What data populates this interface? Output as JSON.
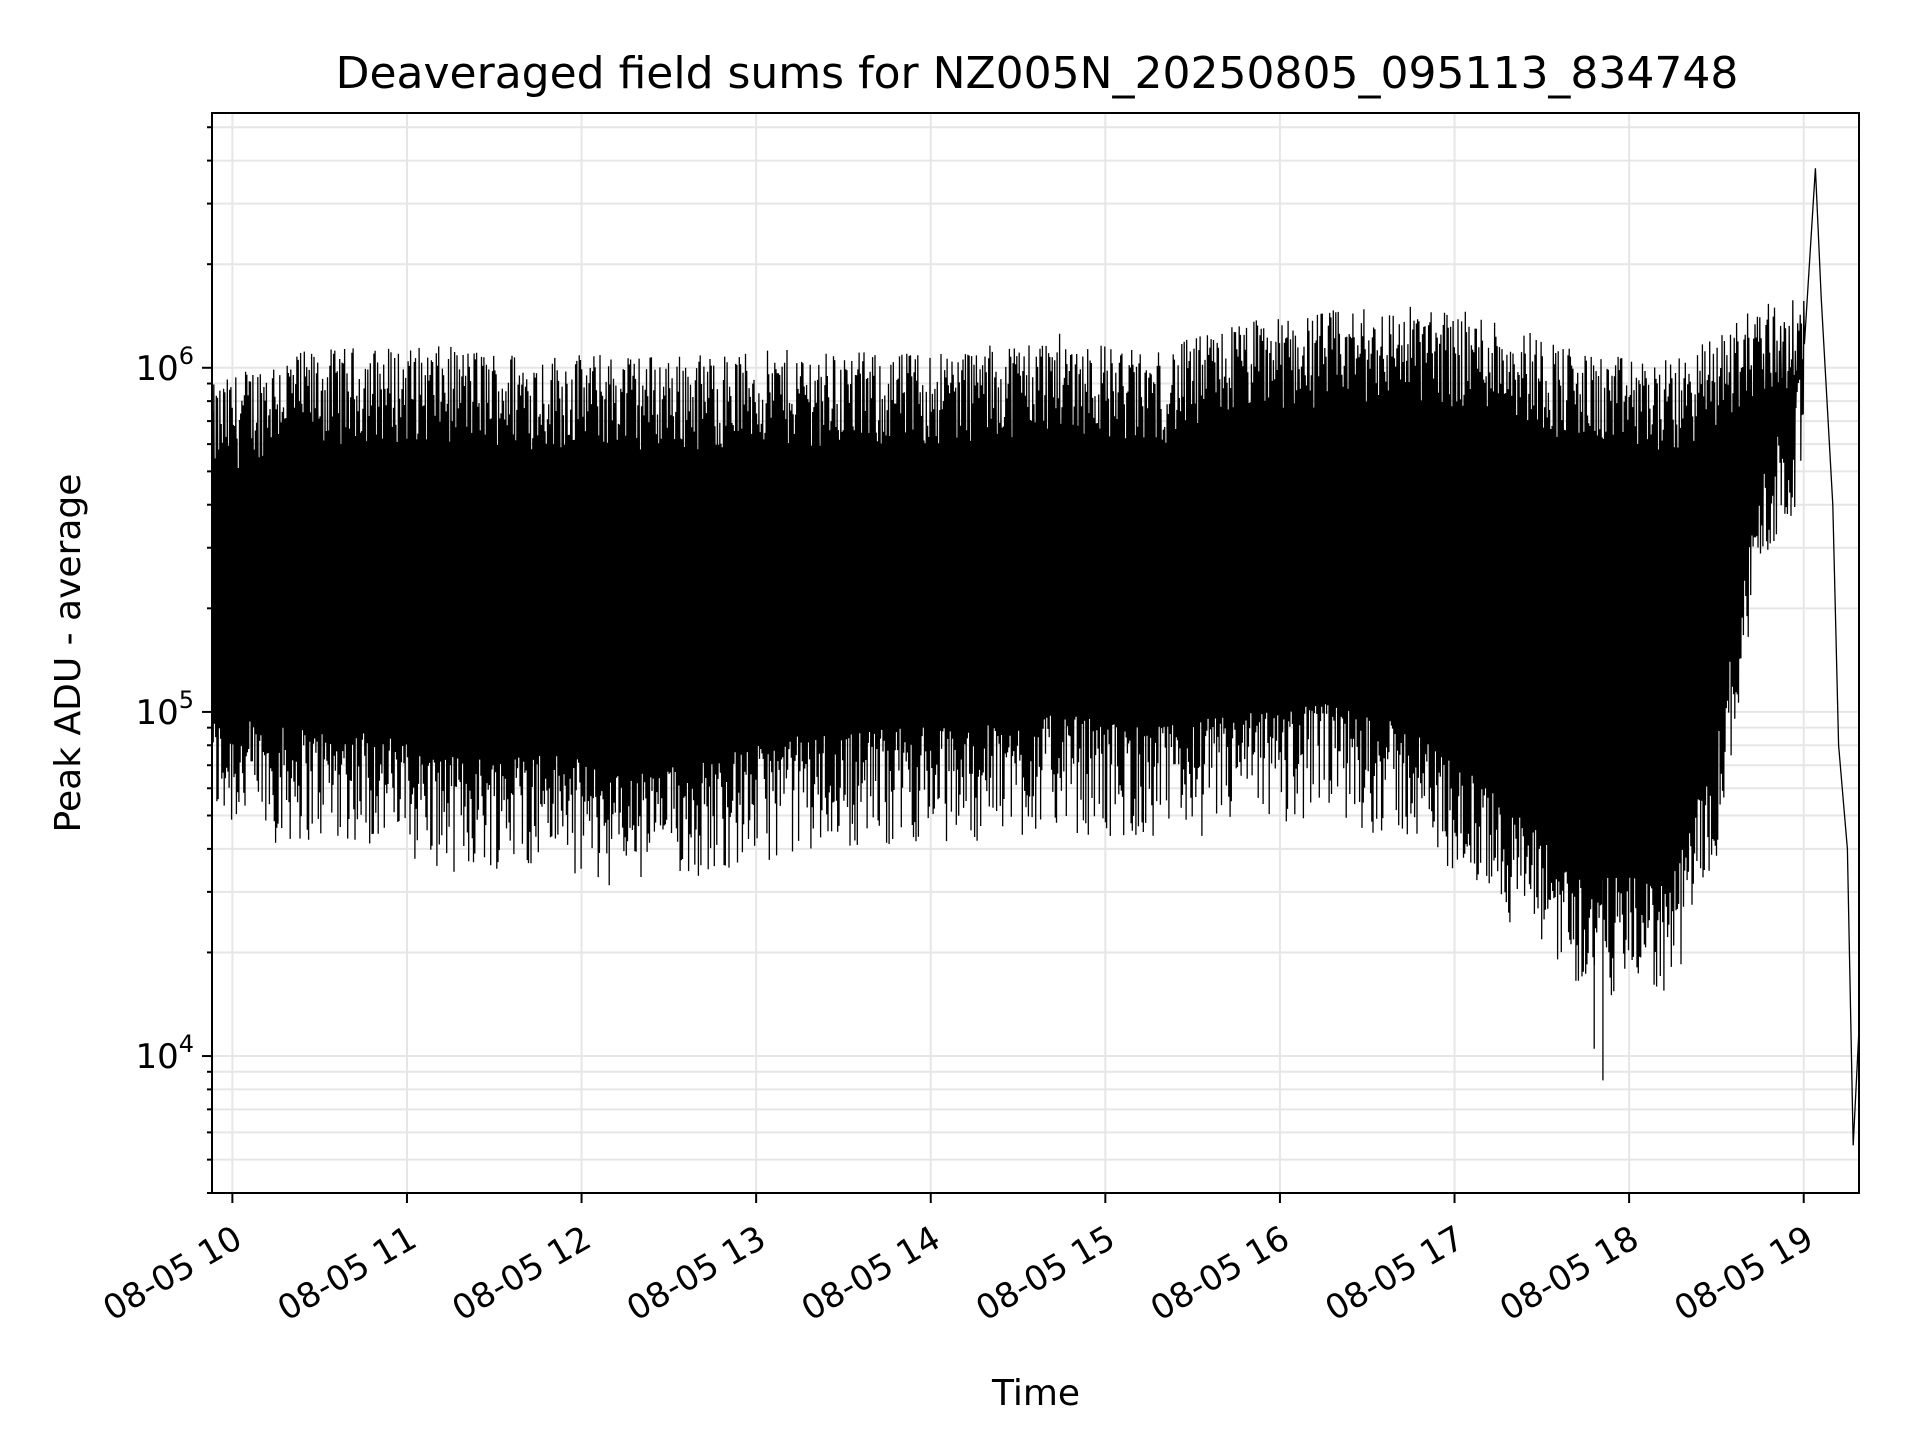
{
  "chart_data": {
    "type": "line",
    "title": "Deaveraged field sums for NZ005N_20250805_095113_834748",
    "xlabel": "Time",
    "ylabel": "Peak ADU - average",
    "yscale": "log",
    "grid": true,
    "xlim": [
      "2025-08-05 09:53",
      "2025-08-05 19:19"
    ],
    "ylim": [
      4000,
      5500000
    ],
    "x_ticks": [
      {
        "value": "2025-08-05 10:00",
        "label": "08-05 10"
      },
      {
        "value": "2025-08-05 11:00",
        "label": "08-05 11"
      },
      {
        "value": "2025-08-05 12:00",
        "label": "08-05 12"
      },
      {
        "value": "2025-08-05 13:00",
        "label": "08-05 13"
      },
      {
        "value": "2025-08-05 14:00",
        "label": "08-05 14"
      },
      {
        "value": "2025-08-05 15:00",
        "label": "08-05 15"
      },
      {
        "value": "2025-08-05 16:00",
        "label": "08-05 16"
      },
      {
        "value": "2025-08-05 17:00",
        "label": "08-05 17"
      },
      {
        "value": "2025-08-05 18:00",
        "label": "08-05 18"
      },
      {
        "value": "2025-08-05 19:00",
        "label": "08-05 19"
      }
    ],
    "y_ticks": [
      {
        "value": 10000,
        "base": "10",
        "exp": "4"
      },
      {
        "value": 100000,
        "base": "10",
        "exp": "5"
      },
      {
        "value": 1000000,
        "base": "10",
        "exp": "6"
      }
    ],
    "series": [
      {
        "color": "#000000",
        "envelope": [
          {
            "x": "2025-08-05 09:53",
            "low": 60000,
            "high": 850000
          },
          {
            "x": "2025-08-05 10:15",
            "low": 55000,
            "high": 1050000
          },
          {
            "x": "2025-08-05 10:45",
            "low": 55000,
            "high": 1100000
          },
          {
            "x": "2025-08-05 11:15",
            "low": 45000,
            "high": 1100000
          },
          {
            "x": "2025-08-05 11:45",
            "low": 48000,
            "high": 1050000
          },
          {
            "x": "2025-08-05 12:15",
            "low": 40000,
            "high": 1050000
          },
          {
            "x": "2025-08-05 12:45",
            "low": 45000,
            "high": 1050000
          },
          {
            "x": "2025-08-05 13:15",
            "low": 52000,
            "high": 1080000
          },
          {
            "x": "2025-08-05 13:45",
            "low": 55000,
            "high": 1050000
          },
          {
            "x": "2025-08-05 14:15",
            "low": 55000,
            "high": 1100000
          },
          {
            "x": "2025-08-05 14:45",
            "low": 60000,
            "high": 1200000
          },
          {
            "x": "2025-08-05 15:15",
            "low": 55000,
            "high": 1050000
          },
          {
            "x": "2025-08-05 15:45",
            "low": 60000,
            "high": 1300000
          },
          {
            "x": "2025-08-05 16:15",
            "low": 65000,
            "high": 1400000
          },
          {
            "x": "2025-08-05 16:45",
            "low": 55000,
            "high": 1450000
          },
          {
            "x": "2025-08-05 17:15",
            "low": 35000,
            "high": 1350000
          },
          {
            "x": "2025-08-05 17:45",
            "low": 20000,
            "high": 1050000
          },
          {
            "x": "2025-08-05 18:15",
            "low": 20000,
            "high": 1000000
          },
          {
            "x": "2025-08-05 18:30",
            "low": 50000,
            "high": 1200000
          },
          {
            "x": "2025-08-05 18:45",
            "low": 300000,
            "high": 1500000
          },
          {
            "x": "2025-08-05 19:00",
            "low": 600000,
            "high": 1500000
          }
        ],
        "notable_points": [
          {
            "x": "2025-08-05 17:51",
            "y": 8500
          },
          {
            "x": "2025-08-05 17:48",
            "y": 10500
          },
          {
            "x": "2025-08-05 19:04",
            "y": 3800000
          },
          {
            "x": "2025-08-05 19:06",
            "y": 1600000
          },
          {
            "x": "2025-08-05 19:10",
            "y": 400000
          },
          {
            "x": "2025-08-05 19:12",
            "y": 80000
          },
          {
            "x": "2025-08-05 19:15",
            "y": 40000
          },
          {
            "x": "2025-08-05 19:17",
            "y": 5500
          },
          {
            "x": "2025-08-05 19:19",
            "y": 12000
          }
        ]
      }
    ]
  }
}
